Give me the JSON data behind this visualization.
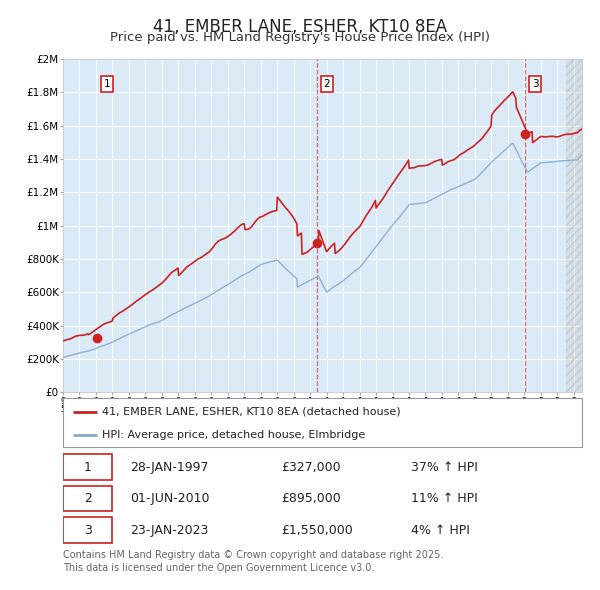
{
  "title": "41, EMBER LANE, ESHER, KT10 8EA",
  "subtitle": "Price paid vs. HM Land Registry's House Price Index (HPI)",
  "ylim": [
    0,
    2000000
  ],
  "xlim_start": 1995.0,
  "xlim_end": 2026.5,
  "background_color": "#daeaf7",
  "grid_color": "#ffffff",
  "red_line_color": "#cc2222",
  "blue_line_color": "#88aacc",
  "purchase_dates": [
    1997.07,
    2010.42,
    2023.07
  ],
  "purchase_prices": [
    327000,
    895000,
    1550000
  ],
  "dashed_line_x": [
    2010.42,
    2023.07
  ],
  "legend_red_label": "41, EMBER LANE, ESHER, KT10 8EA (detached house)",
  "legend_blue_label": "HPI: Average price, detached house, Elmbridge",
  "table_data": [
    [
      "1",
      "28-JAN-1997",
      "£327,000",
      "37% ↑ HPI"
    ],
    [
      "2",
      "01-JUN-2010",
      "£895,000",
      "11% ↑ HPI"
    ],
    [
      "3",
      "23-JAN-2023",
      "£1,550,000",
      "4% ↑ HPI"
    ]
  ],
  "footer_text": "Contains HM Land Registry data © Crown copyright and database right 2025.\nThis data is licensed under the Open Government Licence v3.0.",
  "title_fontsize": 12,
  "subtitle_fontsize": 9.5,
  "tick_label_fontsize": 7.5,
  "legend_fontsize": 8,
  "table_fontsize": 9,
  "footer_fontsize": 7
}
